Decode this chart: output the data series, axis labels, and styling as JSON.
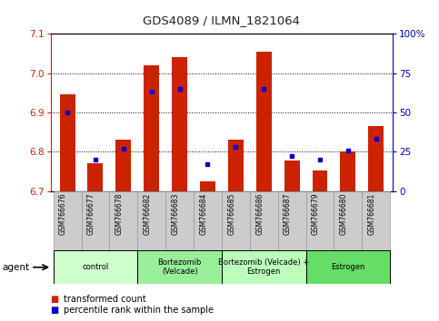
{
  "title": "GDS4089 / ILMN_1821064",
  "samples": [
    "GSM766676",
    "GSM766677",
    "GSM766678",
    "GSM766682",
    "GSM766683",
    "GSM766684",
    "GSM766685",
    "GSM766686",
    "GSM766687",
    "GSM766679",
    "GSM766680",
    "GSM766681"
  ],
  "red_values": [
    6.945,
    6.77,
    6.83,
    7.02,
    7.04,
    6.725,
    6.83,
    7.055,
    6.778,
    6.752,
    6.8,
    6.865
  ],
  "blue_pct": [
    50,
    20,
    27,
    63,
    65,
    17,
    28,
    65,
    22,
    20,
    26,
    33
  ],
  "ylim_left": [
    6.7,
    7.1
  ],
  "ylim_right": [
    0,
    100
  ],
  "yticks_left": [
    6.7,
    6.8,
    6.9,
    7.0,
    7.1
  ],
  "yticks_right": [
    0,
    25,
    50,
    75,
    100
  ],
  "ytick_labels_right": [
    "0",
    "25",
    "50",
    "75",
    "100%"
  ],
  "groups": [
    {
      "label": "control",
      "start": 0,
      "end": 3,
      "color": "#ccffcc"
    },
    {
      "label": "Bortezomib\n(Velcade)",
      "start": 3,
      "end": 6,
      "color": "#99ee99"
    },
    {
      "label": "Bortezomib (Velcade) +\nEstrogen",
      "start": 6,
      "end": 9,
      "color": "#bbffbb"
    },
    {
      "label": "Estrogen",
      "start": 9,
      "end": 12,
      "color": "#66dd66"
    }
  ],
  "bar_color_red": "#cc2200",
  "bar_color_blue": "#0000cc",
  "baseline": 6.7,
  "agent_label": "agent",
  "legend_red": "transformed count",
  "legend_blue": "percentile rank within the sample",
  "left_tick_color": "#cc2200",
  "right_tick_color": "#0000bb",
  "title_color": "#222222",
  "tick_label_box_color": "#cccccc",
  "tick_label_box_edge": "#999999"
}
